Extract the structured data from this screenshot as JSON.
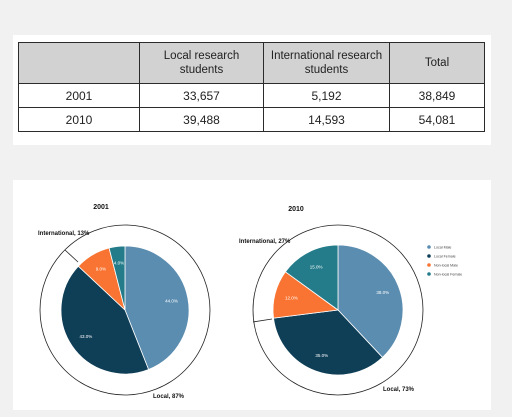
{
  "table": {
    "headers": [
      "",
      "Local research students",
      "International research students",
      "Total"
    ],
    "rows": [
      {
        "year": "2001",
        "local": "33,657",
        "international": "5,192",
        "total": "38,849"
      },
      {
        "year": "2010",
        "local": "39,488",
        "international": "14,593",
        "total": "54,081"
      }
    ]
  },
  "chart_data": [
    {
      "type": "pie",
      "title": "2001",
      "slices": [
        {
          "name": "Local Male",
          "value": 44.0,
          "label": "44.0%"
        },
        {
          "name": "Local Female",
          "value": 43.0,
          "label": "43.0%"
        },
        {
          "name": "Non-local Male",
          "value": 9.0,
          "label": "9.0%"
        },
        {
          "name": "Non-local Female",
          "value": 4.0,
          "label": "4.0%"
        }
      ],
      "callouts": {
        "international": "International, 13%",
        "local": "Local, 87%"
      }
    },
    {
      "type": "pie",
      "title": "2010",
      "slices": [
        {
          "name": "Local Male",
          "value": 38.0,
          "label": "38.0%"
        },
        {
          "name": "Local Female",
          "value": 35.0,
          "label": "35.0%"
        },
        {
          "name": "Non-local Male",
          "value": 12.0,
          "label": "12.0%"
        },
        {
          "name": "Non-local Female",
          "value": 15.0,
          "label": "15.0%"
        }
      ],
      "callouts": {
        "international": "International, 27%",
        "local": "Local, 73%"
      }
    }
  ],
  "legend": [
    {
      "label": "Local Male",
      "color": "#5b8db0"
    },
    {
      "label": "Local Female",
      "color": "#0f3e57"
    },
    {
      "label": "Non-local Male",
      "color": "#f97432"
    },
    {
      "label": "Non-local Female",
      "color": "#247c8a"
    }
  ]
}
